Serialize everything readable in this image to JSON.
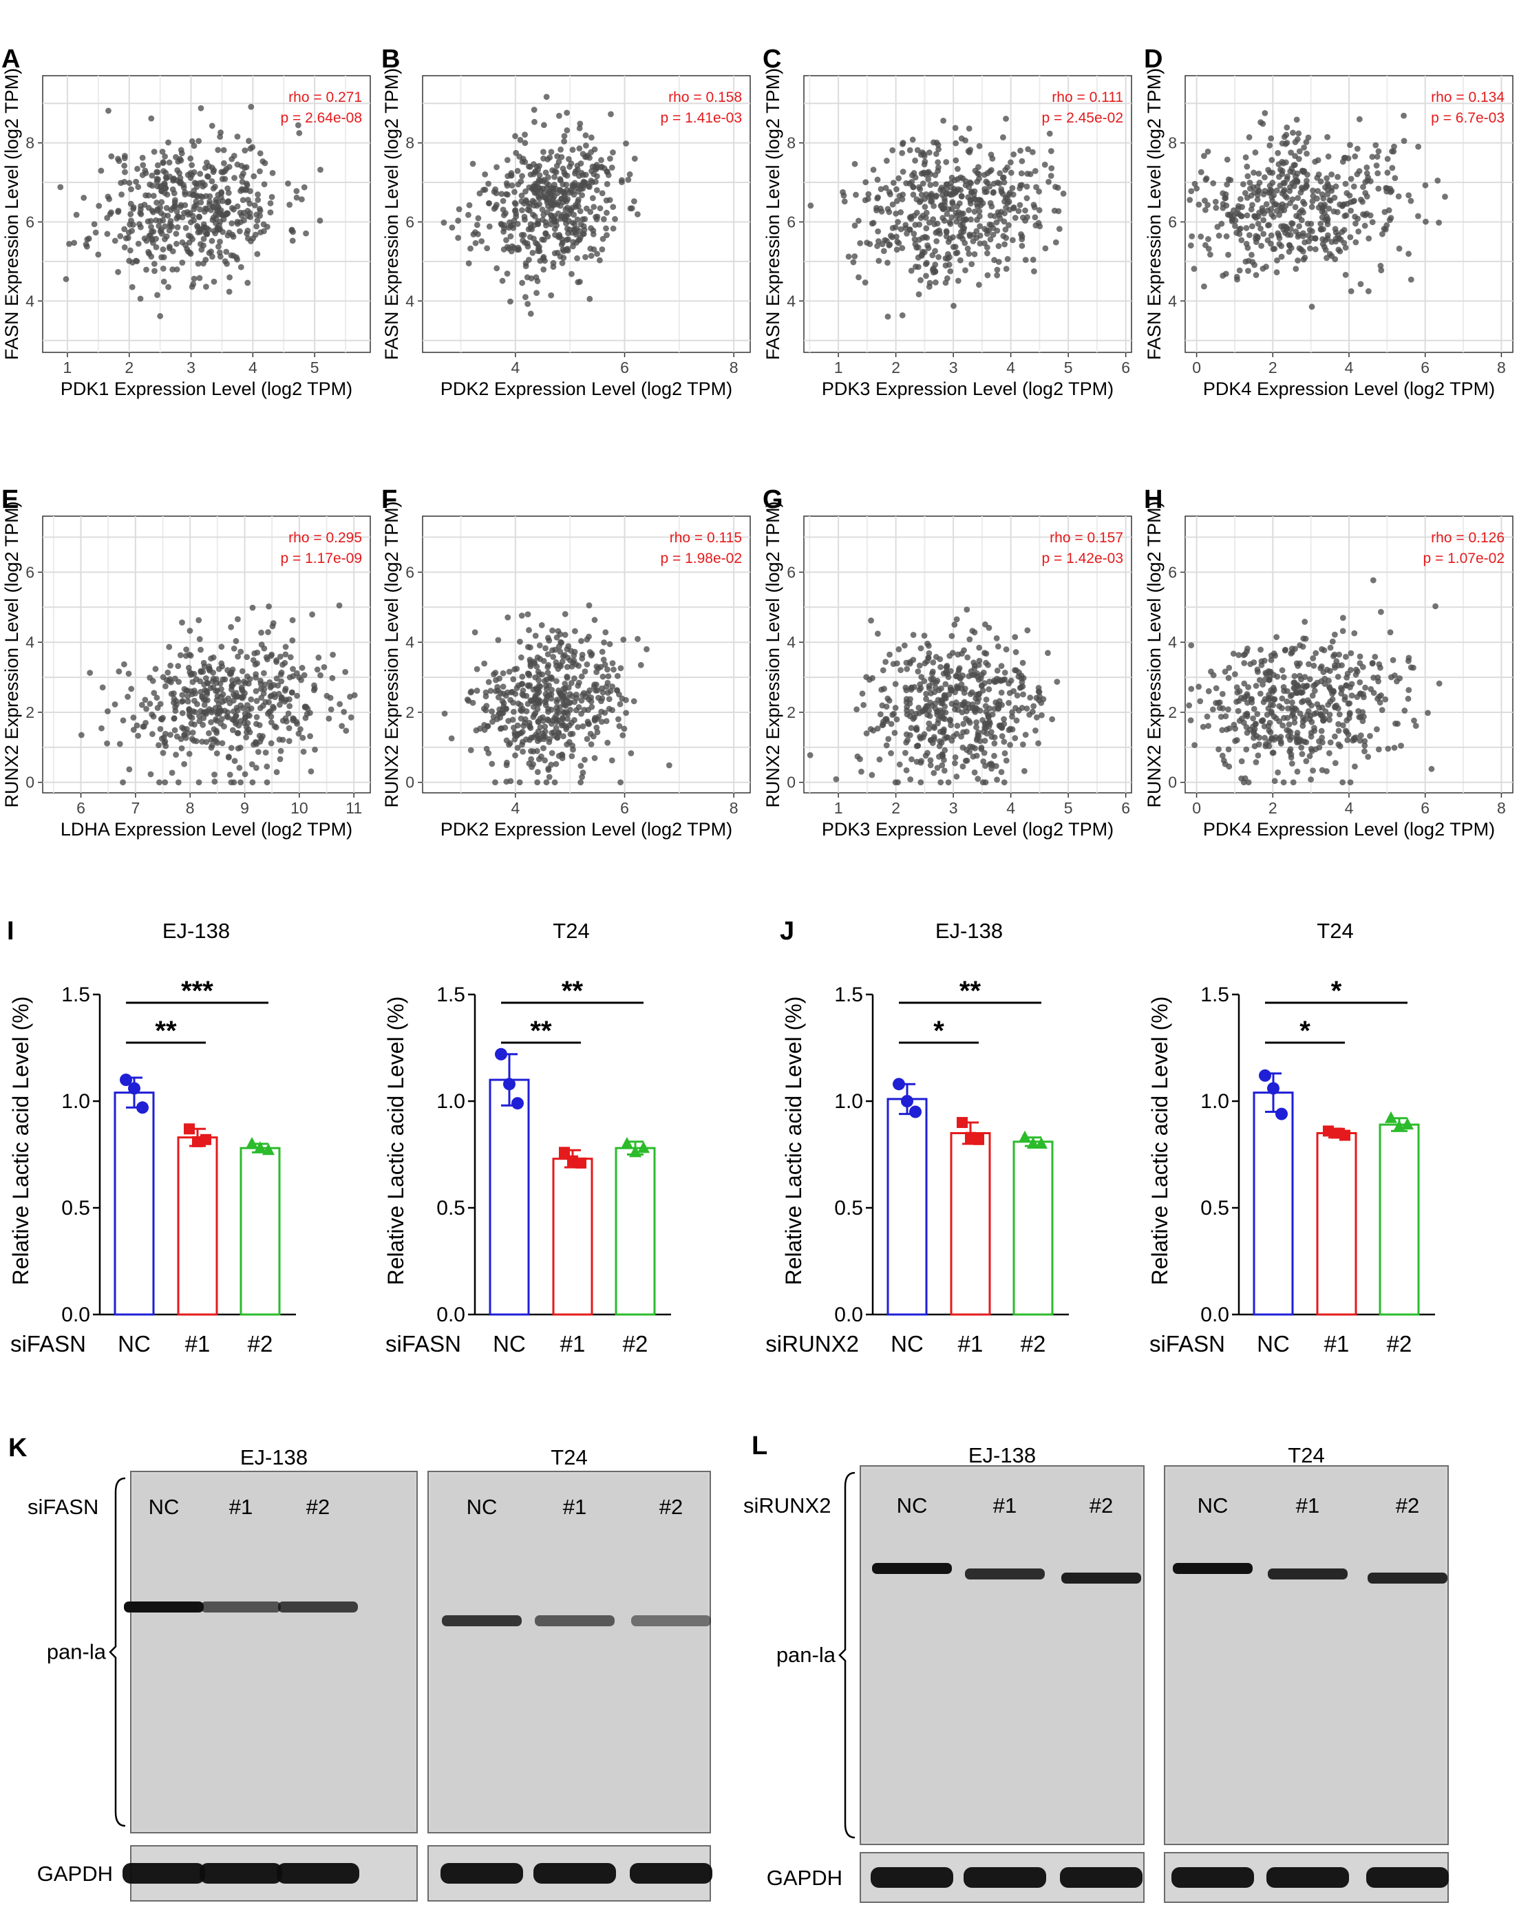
{
  "colors": {
    "nc": "#1f1fd6",
    "s1": "#e41a1c",
    "s2": "#2bbb2b",
    "scatter": "#4d4d4d",
    "stat": "#e41a1c"
  },
  "scatter_panels": [
    {
      "letter": "A",
      "xlabel": "PDK1 Expression Level (log2 TPM)",
      "ylabel": "FASN Expression Level (log2 TPM)",
      "rho": "rho = 0.271",
      "p": "p = 2.64e-08",
      "xlim": [
        0.6,
        5.9
      ],
      "ylim": [
        2.7,
        9.7
      ],
      "xticks": [
        1,
        2,
        3,
        4,
        5
      ],
      "yticks": [
        4,
        6,
        8
      ],
      "center": [
        3.0,
        6.4
      ],
      "spread": [
        0.75,
        0.9
      ],
      "seed": 11
    },
    {
      "letter": "B",
      "xlabel": "PDK2 Expression Level (log2 TPM)",
      "ylabel": "FASN Expression Level (log2 TPM)",
      "rho": "rho = 0.158",
      "p": "p = 1.41e-03",
      "xlim": [
        2.3,
        8.3
      ],
      "ylim": [
        2.7,
        9.7
      ],
      "xticks": [
        4,
        6,
        8
      ],
      "yticks": [
        4,
        6,
        8
      ],
      "center": [
        4.6,
        6.4
      ],
      "spread": [
        0.65,
        0.9
      ],
      "seed": 23
    },
    {
      "letter": "C",
      "xlabel": "PDK3 Expression Level (log2 TPM)",
      "ylabel": "FASN Expression Level (log2 TPM)",
      "rho": "rho = 0.111",
      "p": "p = 2.45e-02",
      "xlim": [
        0.4,
        6.1
      ],
      "ylim": [
        2.7,
        9.7
      ],
      "xticks": [
        1,
        2,
        3,
        4,
        5,
        6
      ],
      "yticks": [
        4,
        6,
        8
      ],
      "center": [
        3.0,
        6.4
      ],
      "spread": [
        0.8,
        0.9
      ],
      "seed": 37
    },
    {
      "letter": "D",
      "xlabel": "PDK4 Expression Level (log2 TPM)",
      "ylabel": "FASN Expression Level (log2 TPM)",
      "rho": "rho = 0.134",
      "p": "p = 6.7e-03",
      "xlim": [
        -0.3,
        8.3
      ],
      "ylim": [
        2.7,
        9.7
      ],
      "xticks": [
        0,
        2,
        4,
        6,
        8
      ],
      "yticks": [
        4,
        6,
        8
      ],
      "center": [
        2.6,
        6.4
      ],
      "spread": [
        1.5,
        0.9
      ],
      "seed": 41
    },
    {
      "letter": "E",
      "xlabel": "LDHA Expression Level (log2 TPM)",
      "ylabel": "RUNX2 Expression Level (log2 TPM)",
      "rho": "rho = 0.295",
      "p": "p = 1.17e-09",
      "xlim": [
        5.3,
        11.3
      ],
      "ylim": [
        -0.3,
        7.6
      ],
      "xticks": [
        6,
        7,
        8,
        9,
        10,
        11
      ],
      "yticks": [
        0,
        2,
        4,
        6
      ],
      "center": [
        8.8,
        2.2
      ],
      "spread": [
        1.05,
        1.0
      ],
      "seed": 53
    },
    {
      "letter": "F",
      "xlabel": "PDK2 Expression Level (log2 TPM)",
      "ylabel": "RUNX2 Expression Level (log2 TPM)",
      "rho": "rho = 0.115",
      "p": "p = 1.98e-02",
      "xlim": [
        2.3,
        8.3
      ],
      "ylim": [
        -0.3,
        7.6
      ],
      "xticks": [
        4,
        6,
        8
      ],
      "yticks": [
        0,
        2,
        4,
        6
      ],
      "center": [
        4.6,
        2.2
      ],
      "spread": [
        0.65,
        1.0
      ],
      "seed": 67
    },
    {
      "letter": "G",
      "xlabel": "PDK3 Expression Level (log2 TPM)",
      "ylabel": "RUNX2 Expression Level (log2 TPM)",
      "rho": "rho = 0.157",
      "p": "p = 1.42e-03",
      "xlim": [
        0.4,
        6.1
      ],
      "ylim": [
        -0.3,
        7.6
      ],
      "xticks": [
        1,
        2,
        3,
        4,
        5,
        6
      ],
      "yticks": [
        0,
        2,
        4,
        6
      ],
      "center": [
        3.0,
        2.2
      ],
      "spread": [
        0.8,
        1.0
      ],
      "seed": 79
    },
    {
      "letter": "H",
      "xlabel": "PDK4 Expression Level (log2 TPM)",
      "ylabel": "RUNX2 Expression Level (log2 TPM)",
      "rho": "rho = 0.126",
      "p": "p = 1.07e-02",
      "xlim": [
        -0.3,
        8.3
      ],
      "ylim": [
        -0.3,
        7.6
      ],
      "xticks": [
        0,
        2,
        4,
        6,
        8
      ],
      "yticks": [
        0,
        2,
        4,
        6
      ],
      "center": [
        2.6,
        2.2
      ],
      "spread": [
        1.5,
        1.0
      ],
      "seed": 83
    }
  ],
  "bar_panels": [
    {
      "letter": "I",
      "title": "EJ-138",
      "grouplabel": "siFASN",
      "categories": [
        "NC",
        "#1",
        "#2"
      ],
      "values": [
        1.04,
        0.83,
        0.78
      ],
      "errors": [
        0.07,
        0.04,
        0.02
      ],
      "points": [
        [
          1.1,
          1.06,
          0.97
        ],
        [
          0.87,
          0.81,
          0.82
        ],
        [
          0.8,
          0.78,
          0.77
        ]
      ],
      "ylabel": "Relative Lactic acid Level (%)",
      "ylim": [
        0,
        1.5
      ],
      "yticks": [
        "0.0",
        "0.5",
        "1.0",
        "1.5"
      ],
      "sig": [
        {
          "a": 0,
          "b": 1,
          "label": "**"
        },
        {
          "a": 0,
          "b": 2,
          "label": "***"
        }
      ]
    },
    {
      "letter": "",
      "title": "T24",
      "grouplabel": "siFASN",
      "categories": [
        "NC",
        "#1",
        "#2"
      ],
      "values": [
        1.1,
        0.73,
        0.78
      ],
      "errors": [
        0.12,
        0.04,
        0.03
      ],
      "points": [
        [
          1.22,
          1.08,
          0.99
        ],
        [
          0.76,
          0.72,
          0.71
        ],
        [
          0.8,
          0.76,
          0.78
        ]
      ],
      "ylabel": "Relative Lactic acid Level (%)",
      "ylim": [
        0,
        1.5
      ],
      "yticks": [
        "0.0",
        "0.5",
        "1.0",
        "1.5"
      ],
      "sig": [
        {
          "a": 0,
          "b": 1,
          "label": "**"
        },
        {
          "a": 0,
          "b": 2,
          "label": "**"
        }
      ]
    },
    {
      "letter": "J",
      "title": "EJ-138",
      "grouplabel": "siRUNX2",
      "categories": [
        "NC",
        "#1",
        "#2"
      ],
      "values": [
        1.01,
        0.85,
        0.81
      ],
      "errors": [
        0.07,
        0.05,
        0.02
      ],
      "points": [
        [
          1.08,
          1.0,
          0.95
        ],
        [
          0.9,
          0.83,
          0.82
        ],
        [
          0.83,
          0.8,
          0.8
        ]
      ],
      "ylabel": "Relative Lactic acid Level (%)",
      "ylim": [
        0,
        1.5
      ],
      "yticks": [
        "0.0",
        "0.5",
        "1.0",
        "1.5"
      ],
      "sig": [
        {
          "a": 0,
          "b": 1,
          "label": "*"
        },
        {
          "a": 0,
          "b": 2,
          "label": "**"
        }
      ]
    },
    {
      "letter": "",
      "title": "T24",
      "grouplabel": "siFASN",
      "categories": [
        "NC",
        "#1",
        "#2"
      ],
      "values": [
        1.04,
        0.85,
        0.89
      ],
      "errors": [
        0.09,
        0.02,
        0.03
      ],
      "points": [
        [
          1.12,
          1.06,
          0.94
        ],
        [
          0.86,
          0.85,
          0.84
        ],
        [
          0.92,
          0.88,
          0.89
        ]
      ],
      "ylabel": "Relative Lactic acid Level (%)",
      "ylim": [
        0,
        1.5
      ],
      "yticks": [
        "0.0",
        "0.5",
        "1.0",
        "1.5"
      ],
      "sig": [
        {
          "a": 0,
          "b": 1,
          "label": "*"
        },
        {
          "a": 0,
          "b": 2,
          "label": "*"
        }
      ]
    }
  ],
  "blots": [
    {
      "letter": "K",
      "group": "siFASN",
      "lanes": [
        "NC",
        "#1",
        "#2"
      ],
      "titles": [
        "EJ-138",
        "T24"
      ],
      "target": "pan-la",
      "loading": "GAPDH",
      "band_strength": [
        [
          1.0,
          0.55,
          0.7
        ],
        [
          0.75,
          0.5,
          0.35
        ]
      ],
      "gapdh_strength": [
        [
          1,
          1,
          1
        ],
        [
          1,
          1,
          1
        ]
      ]
    },
    {
      "letter": "L",
      "group": "siRUNX2",
      "lanes": [
        "NC",
        "#1",
        "#2"
      ],
      "titles": [
        "EJ-138",
        "T24"
      ],
      "target": "pan-la",
      "loading": "GAPDH",
      "band_strength": [
        [
          1.0,
          0.8,
          0.9
        ],
        [
          1.0,
          0.85,
          0.85
        ]
      ],
      "gapdh_strength": [
        [
          1,
          1,
          1
        ],
        [
          1,
          1,
          1
        ]
      ]
    }
  ]
}
